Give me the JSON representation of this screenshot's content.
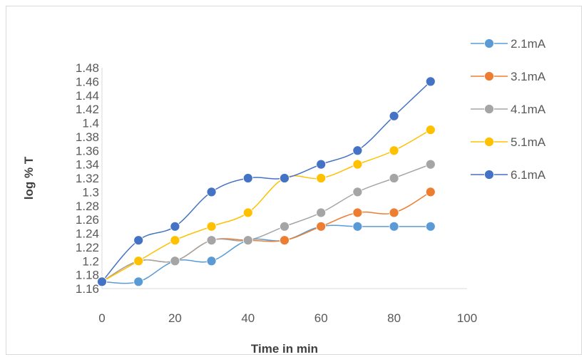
{
  "chart_data": {
    "type": "line",
    "title": "",
    "xlabel": "Time in min",
    "ylabel": "log % T",
    "x": [
      0,
      10,
      20,
      30,
      40,
      50,
      60,
      70,
      80,
      90
    ],
    "xlim": [
      0,
      100
    ],
    "ylim": [
      1.16,
      1.48
    ],
    "xticks": [
      "0",
      "20",
      "40",
      "60",
      "80",
      "100"
    ],
    "yticks": [
      "1.16",
      "1.18",
      "1.2",
      "1.22",
      "1.24",
      "1.26",
      "1.28",
      "1.3",
      "1.32",
      "1.34",
      "1.36",
      "1.38",
      "1.4",
      "1.42",
      "1.44",
      "1.46",
      "1.48"
    ],
    "grid": false,
    "legend_position": "right",
    "series": [
      {
        "name": "2.1mA",
        "color": "#5b9bd5",
        "values": [
          1.17,
          1.17,
          1.2,
          1.2,
          1.23,
          1.23,
          1.25,
          1.25,
          1.25,
          1.25
        ]
      },
      {
        "name": "3.1mA",
        "color": "#ed7d31",
        "values": [
          1.17,
          1.2,
          1.2,
          1.23,
          1.23,
          1.23,
          1.25,
          1.27,
          1.27,
          1.3
        ]
      },
      {
        "name": "4.1mA",
        "color": "#a5a5a5",
        "values": [
          1.17,
          1.2,
          1.2,
          1.23,
          1.23,
          1.25,
          1.27,
          1.3,
          1.32,
          1.34
        ]
      },
      {
        "name": "5.1mA",
        "color": "#ffc000",
        "values": [
          1.17,
          1.2,
          1.23,
          1.25,
          1.27,
          1.32,
          1.32,
          1.34,
          1.36,
          1.39
        ]
      },
      {
        "name": "6.1mA",
        "color": "#4472c4",
        "values": [
          1.17,
          1.23,
          1.25,
          1.3,
          1.32,
          1.32,
          1.34,
          1.36,
          1.41,
          1.46
        ]
      }
    ]
  }
}
